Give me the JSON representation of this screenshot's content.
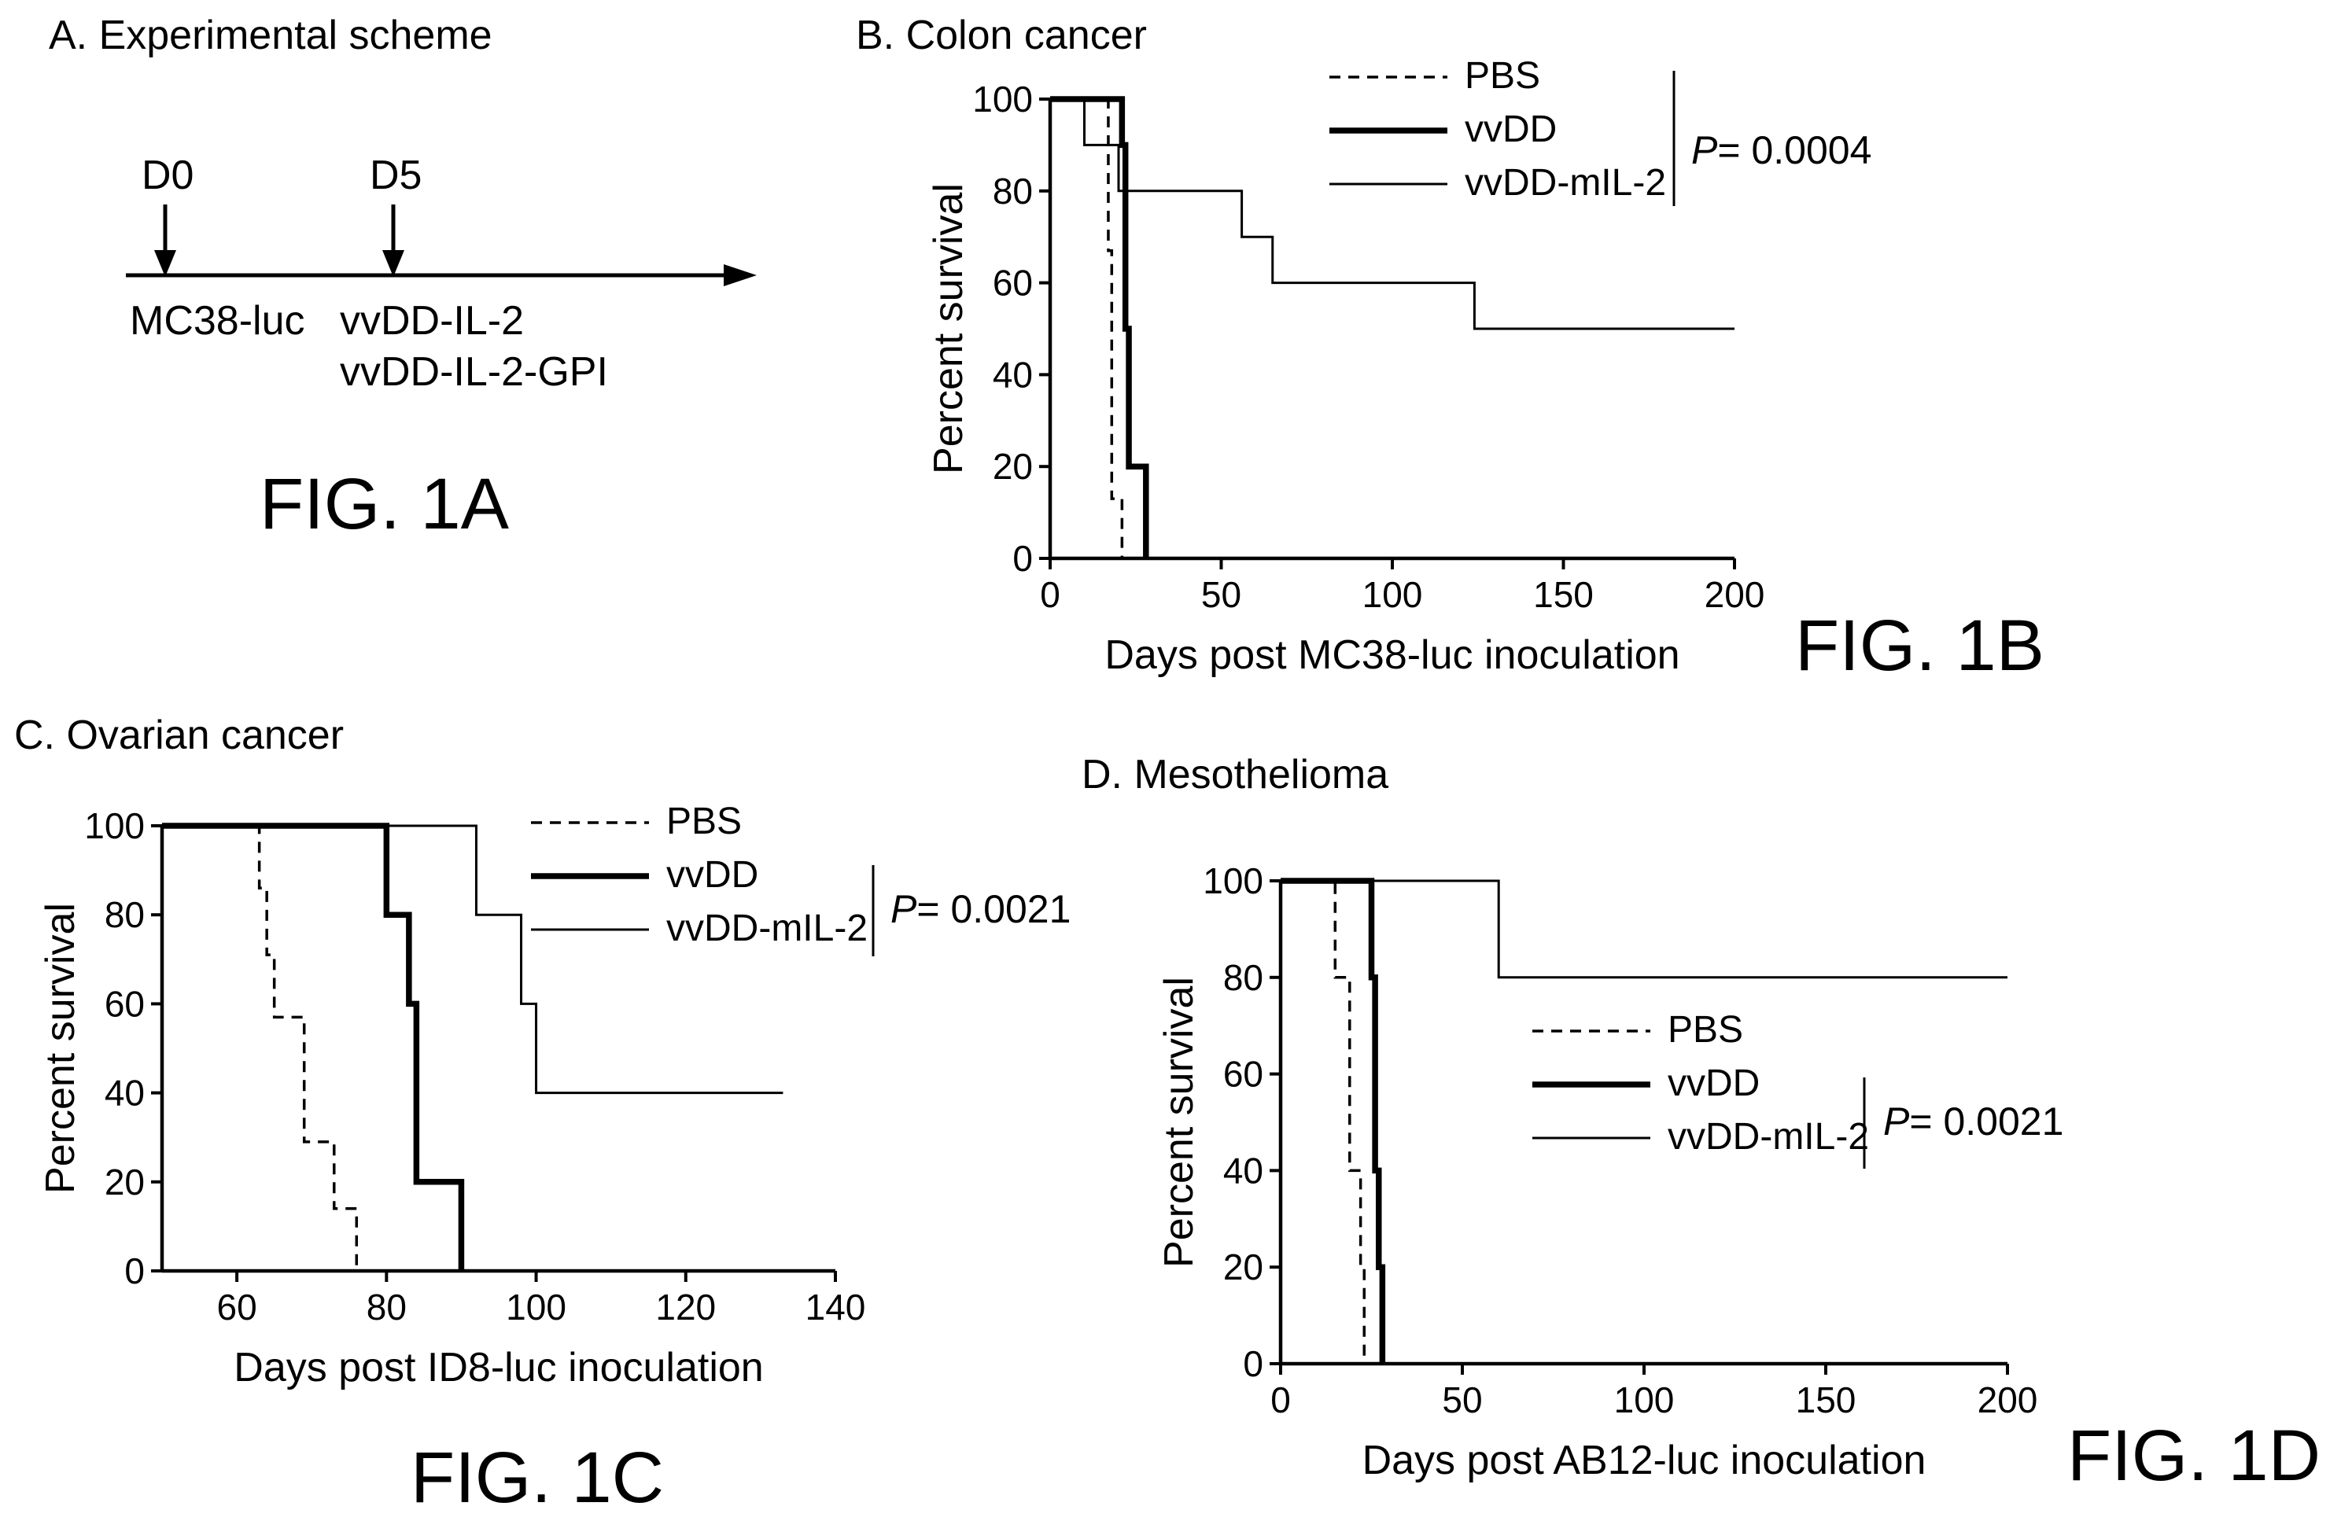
{
  "fig_labels": {
    "a": "FIG. 1A",
    "b": "FIG. 1B",
    "c": "FIG. 1C",
    "d": "FIG. 1D"
  },
  "scheme": {
    "title": "A. Experimental scheme",
    "d0": "D0",
    "d5": "D5",
    "d0_label": "MC38-luc",
    "d5_label_1": "vvDD-IL-2",
    "d5_label_2": "vvDD-IL-2-GPI"
  },
  "legend": {
    "pbs": "PBS",
    "vvdd": "vvDD",
    "mil2": "vvDD-mIL-2"
  },
  "chart_data": [
    {
      "id": "b",
      "type": "line",
      "step": true,
      "title": "B. Colon cancer",
      "xlabel": "Days post MC38-luc inoculation",
      "ylabel": "Percent survival",
      "xlim": [
        0,
        200
      ],
      "ylim": [
        0,
        100
      ],
      "xticks": [
        0,
        50,
        100,
        150,
        200
      ],
      "yticks": [
        0,
        20,
        40,
        60,
        80,
        100
      ],
      "pvalue": "P= 0.0004",
      "series": [
        {
          "name": "PBS",
          "style": "dashed",
          "points": [
            [
              0,
              100
            ],
            [
              16,
              100
            ],
            [
              17,
              67
            ],
            [
              18,
              13
            ],
            [
              20,
              13
            ],
            [
              21,
              0
            ]
          ]
        },
        {
          "name": "vvDD",
          "style": "thick",
          "points": [
            [
              0,
              100
            ],
            [
              20,
              100
            ],
            [
              21,
              90
            ],
            [
              22,
              50
            ],
            [
              23,
              20
            ],
            [
              26,
              20
            ],
            [
              28,
              0
            ]
          ]
        },
        {
          "name": "vvDD-mIL-2",
          "style": "thin",
          "points": [
            [
              0,
              100
            ],
            [
              10,
              100
            ],
            [
              10,
              90
            ],
            [
              18,
              90
            ],
            [
              20,
              80
            ],
            [
              56,
              80
            ],
            [
              56,
              70
            ],
            [
              65,
              70
            ],
            [
              65,
              60
            ],
            [
              124,
              60
            ],
            [
              124,
              50
            ],
            [
              200,
              50
            ]
          ]
        }
      ]
    },
    {
      "id": "c",
      "type": "line",
      "step": true,
      "title": "C. Ovarian cancer",
      "xlabel": "Days post ID8-luc inoculation",
      "ylabel": "Percent survival",
      "xlim": [
        50,
        140
      ],
      "ylim": [
        0,
        100
      ],
      "xticks": [
        60,
        80,
        100,
        120,
        140
      ],
      "yticks": [
        0,
        20,
        40,
        60,
        80,
        100
      ],
      "pvalue": "P= 0.0021",
      "series": [
        {
          "name": "PBS",
          "style": "dashed",
          "points": [
            [
              50,
              100
            ],
            [
              63,
              100
            ],
            [
              63,
              86
            ],
            [
              64,
              86
            ],
            [
              64,
              71
            ],
            [
              65,
              71
            ],
            [
              65,
              57
            ],
            [
              69,
              57
            ],
            [
              69,
              29
            ],
            [
              73,
              29
            ],
            [
              73,
              14
            ],
            [
              75,
              14
            ],
            [
              76,
              0
            ]
          ]
        },
        {
          "name": "vvDD",
          "style": "thick",
          "points": [
            [
              50,
              100
            ],
            [
              80,
              100
            ],
            [
              80,
              80
            ],
            [
              83,
              80
            ],
            [
              83,
              60
            ],
            [
              84,
              60
            ],
            [
              84,
              20
            ],
            [
              90,
              20
            ],
            [
              90,
              0
            ]
          ]
        },
        {
          "name": "vvDD-mIL-2",
          "style": "thin",
          "points": [
            [
              50,
              100
            ],
            [
              92,
              100
            ],
            [
              92,
              80
            ],
            [
              98,
              80
            ],
            [
              98,
              60
            ],
            [
              100,
              60
            ],
            [
              100,
              40
            ],
            [
              133,
              40
            ]
          ]
        }
      ]
    },
    {
      "id": "d",
      "type": "line",
      "step": true,
      "title": "D. Mesothelioma",
      "xlabel": "Days post AB12-luc inoculation",
      "ylabel": "Percent survival",
      "xlim": [
        0,
        200
      ],
      "ylim": [
        0,
        100
      ],
      "xticks": [
        0,
        50,
        100,
        150,
        200
      ],
      "yticks": [
        0,
        20,
        40,
        60,
        80,
        100
      ],
      "pvalue": "P= 0.0021",
      "series": [
        {
          "name": "PBS",
          "style": "dashed",
          "points": [
            [
              0,
              100
            ],
            [
              14,
              100
            ],
            [
              15,
              80
            ],
            [
              18,
              80
            ],
            [
              19,
              60
            ],
            [
              19,
              40
            ],
            [
              22,
              40
            ],
            [
              22,
              20
            ],
            [
              23,
              0
            ]
          ]
        },
        {
          "name": "vvDD",
          "style": "thick",
          "points": [
            [
              0,
              100
            ],
            [
              24,
              100
            ],
            [
              25,
              80
            ],
            [
              26,
              60
            ],
            [
              26,
              40
            ],
            [
              27,
              20
            ],
            [
              28,
              0
            ]
          ]
        },
        {
          "name": "vvDD-mIL-2",
          "style": "thin",
          "points": [
            [
              0,
              100
            ],
            [
              60,
              100
            ],
            [
              60,
              80
            ],
            [
              200,
              80
            ]
          ]
        }
      ]
    }
  ]
}
